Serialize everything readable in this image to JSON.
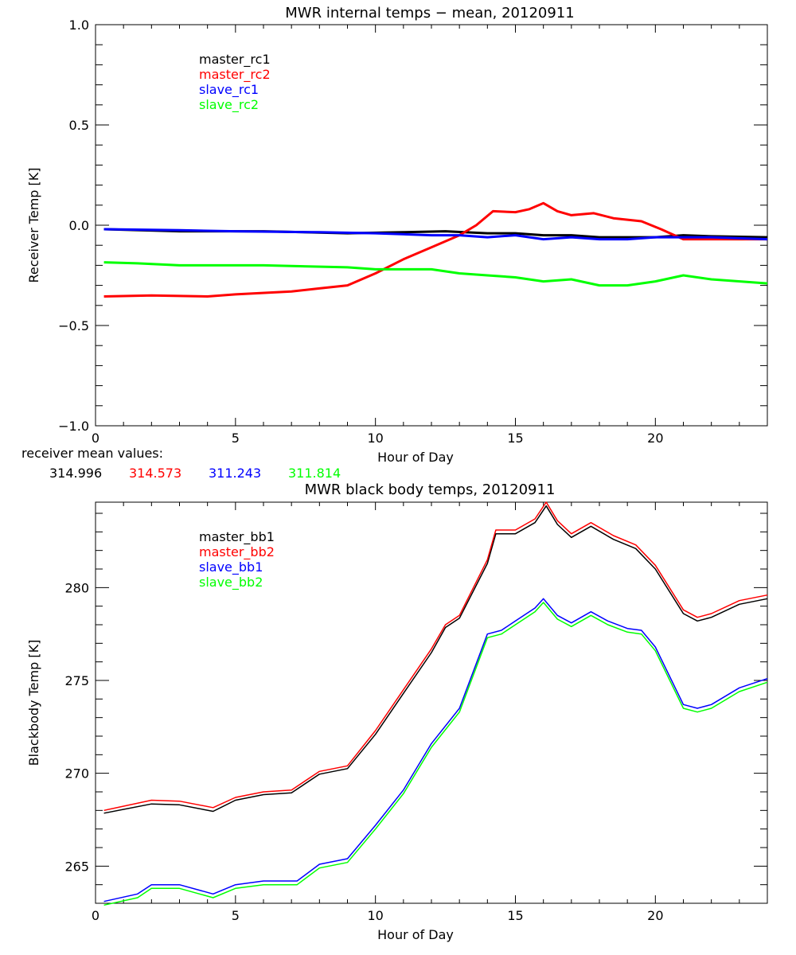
{
  "chart_data": [
    {
      "type": "line",
      "title": "MWR internal temps - mean, 20120911",
      "xlabel": "Hour of Day",
      "ylabel": "Receiver Temp [K]",
      "xlim": [
        0,
        24
      ],
      "ylim": [
        -1.0,
        1.0
      ],
      "xticks": [
        0,
        5,
        10,
        15,
        20
      ],
      "yticks": [
        -1.0,
        -0.5,
        0.0,
        0.5,
        1.0
      ],
      "ytick_labels": [
        "-1.0",
        "-0.5",
        "0.0",
        "0.5",
        "1.0"
      ],
      "grid": false,
      "legend_position": "top-left",
      "series": [
        {
          "name": "master_rc1",
          "color": "#000000",
          "x": [
            0.3,
            3,
            6,
            9,
            11,
            12.5,
            14,
            15,
            16,
            17,
            18,
            19,
            20,
            21,
            22,
            24
          ],
          "y": [
            -0.02,
            -0.03,
            -0.03,
            -0.04,
            -0.035,
            -0.03,
            -0.04,
            -0.04,
            -0.05,
            -0.05,
            -0.06,
            -0.06,
            -0.06,
            -0.05,
            -0.055,
            -0.06
          ]
        },
        {
          "name": "master_rc2",
          "color": "#ff0000",
          "x": [
            0.3,
            2,
            4,
            5,
            7,
            8,
            9,
            10,
            11,
            12,
            13,
            13.6,
            14.2,
            15,
            15.5,
            16,
            16.5,
            17,
            17.8,
            18.5,
            19.5,
            20.2,
            21,
            22,
            24
          ],
          "y": [
            -0.355,
            -0.35,
            -0.355,
            -0.345,
            -0.33,
            -0.315,
            -0.3,
            -0.24,
            -0.17,
            -0.11,
            -0.05,
            0.0,
            0.07,
            0.065,
            0.08,
            0.11,
            0.07,
            0.05,
            0.06,
            0.035,
            0.02,
            -0.02,
            -0.07,
            -0.07,
            -0.07
          ]
        },
        {
          "name": "slave_rc1",
          "color": "#0000ff",
          "x": [
            0.3,
            3,
            5,
            8,
            10,
            12,
            13,
            14,
            15,
            16,
            17,
            18,
            19,
            20,
            22,
            24
          ],
          "y": [
            -0.02,
            -0.025,
            -0.03,
            -0.035,
            -0.04,
            -0.05,
            -0.05,
            -0.06,
            -0.05,
            -0.07,
            -0.06,
            -0.07,
            -0.07,
            -0.06,
            -0.06,
            -0.07
          ]
        },
        {
          "name": "slave_rc2",
          "color": "#00ff00",
          "x": [
            0.3,
            1.5,
            3,
            6,
            9,
            10,
            12,
            13,
            14,
            15,
            16,
            17,
            18,
            19,
            20,
            21,
            22,
            24
          ],
          "y": [
            -0.185,
            -0.19,
            -0.2,
            -0.2,
            -0.21,
            -0.22,
            -0.22,
            -0.24,
            -0.25,
            -0.26,
            -0.28,
            -0.27,
            -0.3,
            -0.3,
            -0.28,
            -0.25,
            -0.27,
            -0.29
          ]
        }
      ],
      "annotation": {
        "label": "receiver mean values:",
        "values": [
          {
            "text": "314.996",
            "color": "#000000"
          },
          {
            "text": "314.573",
            "color": "#ff0000"
          },
          {
            "text": "311.243",
            "color": "#0000ff"
          },
          {
            "text": "311.814",
            "color": "#00ff00"
          }
        ]
      }
    },
    {
      "type": "line",
      "title": "MWR black body temps, 20120911",
      "xlabel": "Hour of Day",
      "ylabel": "Blackbody Temp [K]",
      "xlim": [
        0,
        24
      ],
      "ylim": [
        263,
        284.6
      ],
      "xticks": [
        0,
        5,
        10,
        15,
        20
      ],
      "yticks": [
        265,
        270,
        275,
        280
      ],
      "ytick_labels": [
        "265",
        "270",
        "275",
        "280"
      ],
      "grid": false,
      "legend_position": "top-left",
      "series": [
        {
          "name": "master_bb1",
          "color": "#000000",
          "x": [
            0.3,
            2,
            3,
            4.2,
            5,
            6,
            7,
            8,
            9,
            10,
            11,
            12,
            12.5,
            13,
            14,
            14.3,
            15,
            15.7,
            16.1,
            16.5,
            17,
            17.7,
            18.5,
            19.3,
            20,
            21,
            21.5,
            22,
            23,
            24
          ],
          "y": [
            267.85,
            268.35,
            268.3,
            267.95,
            268.55,
            268.85,
            268.95,
            269.95,
            270.25,
            272.1,
            274.3,
            276.5,
            277.85,
            278.35,
            281.3,
            282.9,
            282.9,
            283.5,
            284.4,
            283.4,
            282.7,
            283.3,
            282.6,
            282.1,
            281.0,
            278.6,
            278.2,
            278.4,
            279.1,
            279.4
          ]
        },
        {
          "name": "master_bb2",
          "color": "#ff0000",
          "x": [
            0.3,
            2,
            3,
            4.2,
            5,
            6,
            7,
            8,
            9,
            10,
            11,
            12,
            12.5,
            13,
            14,
            14.3,
            15,
            15.7,
            16.1,
            16.5,
            17,
            17.7,
            18.5,
            19.3,
            20,
            21,
            21.5,
            22,
            23,
            24
          ],
          "y": [
            268.0,
            268.55,
            268.5,
            268.15,
            268.7,
            269.0,
            269.1,
            270.1,
            270.4,
            272.3,
            274.5,
            276.7,
            278.0,
            278.5,
            281.5,
            283.1,
            283.1,
            283.7,
            284.6,
            283.6,
            282.9,
            283.5,
            282.8,
            282.3,
            281.2,
            278.8,
            278.4,
            278.6,
            279.3,
            279.6
          ]
        },
        {
          "name": "slave_bb1",
          "color": "#0000ff",
          "x": [
            0.3,
            1.5,
            2,
            3,
            4.2,
            5,
            6,
            7.2,
            8,
            9,
            10,
            11,
            12,
            13,
            14,
            14.5,
            15,
            15.7,
            16,
            16.5,
            17,
            17.7,
            18.3,
            19,
            19.5,
            20,
            21,
            21.5,
            22,
            23,
            24
          ],
          "y": [
            263.1,
            263.5,
            264.0,
            264.0,
            263.5,
            264.0,
            264.2,
            264.2,
            265.1,
            265.4,
            267.2,
            269.1,
            271.6,
            273.5,
            277.5,
            277.7,
            278.2,
            278.9,
            279.4,
            278.5,
            278.1,
            278.7,
            278.2,
            277.8,
            277.7,
            276.8,
            273.7,
            273.5,
            273.7,
            274.6,
            275.1
          ]
        },
        {
          "name": "slave_bb2",
          "color": "#00ff00",
          "x": [
            0.3,
            1.5,
            2,
            3,
            4.2,
            5,
            6,
            7.2,
            8,
            9,
            10,
            11,
            12,
            13,
            14,
            14.5,
            15,
            15.7,
            16,
            16.5,
            17,
            17.7,
            18.3,
            19,
            19.5,
            20,
            21,
            21.5,
            22,
            23,
            24
          ],
          "y": [
            262.9,
            263.3,
            263.8,
            263.8,
            263.3,
            263.8,
            264.0,
            264.0,
            264.9,
            265.2,
            267.0,
            268.9,
            271.4,
            273.3,
            277.3,
            277.5,
            278.0,
            278.7,
            279.2,
            278.3,
            277.9,
            278.5,
            278.0,
            277.6,
            277.5,
            276.6,
            273.5,
            273.3,
            273.5,
            274.4,
            274.9
          ]
        }
      ]
    }
  ]
}
